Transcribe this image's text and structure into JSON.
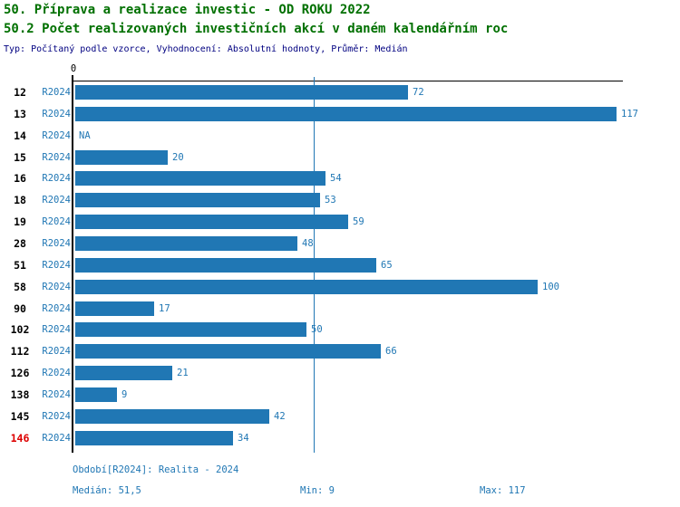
{
  "header": {
    "title_line1": "50. Příprava a realizace investic - OD ROKU 2022",
    "title_line2": "50.2 Počet realizovaných investičních akcí v daném kalendářním roc",
    "meta": "Typ: Počítaný podle vzorce, Vyhodnocení: Absolutní hodnoty, Průměr: Medián"
  },
  "chart_data": {
    "type": "bar",
    "orientation": "horizontal",
    "x_axis": {
      "zero_label": "0",
      "range": [
        0,
        117
      ]
    },
    "median_value": 51.5,
    "period_label": "R2024",
    "highlight_row_id": "146",
    "rows": [
      {
        "id": "12",
        "period": "R2024",
        "value": 72,
        "label": "72"
      },
      {
        "id": "13",
        "period": "R2024",
        "value": 117,
        "label": "117"
      },
      {
        "id": "14",
        "period": "R2024",
        "value": null,
        "label": "NA"
      },
      {
        "id": "15",
        "period": "R2024",
        "value": 20,
        "label": "20"
      },
      {
        "id": "16",
        "period": "R2024",
        "value": 54,
        "label": "54"
      },
      {
        "id": "18",
        "period": "R2024",
        "value": 53,
        "label": "53"
      },
      {
        "id": "19",
        "period": "R2024",
        "value": 59,
        "label": "59"
      },
      {
        "id": "28",
        "period": "R2024",
        "value": 48,
        "label": "48"
      },
      {
        "id": "51",
        "period": "R2024",
        "value": 65,
        "label": "65"
      },
      {
        "id": "58",
        "period": "R2024",
        "value": 100,
        "label": "100"
      },
      {
        "id": "90",
        "period": "R2024",
        "value": 17,
        "label": "17"
      },
      {
        "id": "102",
        "period": "R2024",
        "value": 50,
        "label": "50"
      },
      {
        "id": "112",
        "period": "R2024",
        "value": 66,
        "label": "66"
      },
      {
        "id": "126",
        "period": "R2024",
        "value": 21,
        "label": "21"
      },
      {
        "id": "138",
        "period": "R2024",
        "value": 9,
        "label": "9"
      },
      {
        "id": "145",
        "period": "R2024",
        "value": 42,
        "label": "42"
      },
      {
        "id": "146",
        "period": "R2024",
        "value": 34,
        "label": "34"
      }
    ],
    "title": "50.2 Počet realizovaných investičních akcí v daném kalendářním roc",
    "legend": "none",
    "grid": "off"
  },
  "footer": {
    "period_info": "Období[R2024]: Realita - 2024",
    "median": "Medián: 51,5",
    "min": "Min: 9",
    "max": "Max: 117"
  },
  "colors": {
    "title_green": "#007000",
    "meta_navy": "#000080",
    "bar_blue": "#2077B4",
    "highlight_red": "#DD0000",
    "axis_black": "#000000"
  }
}
